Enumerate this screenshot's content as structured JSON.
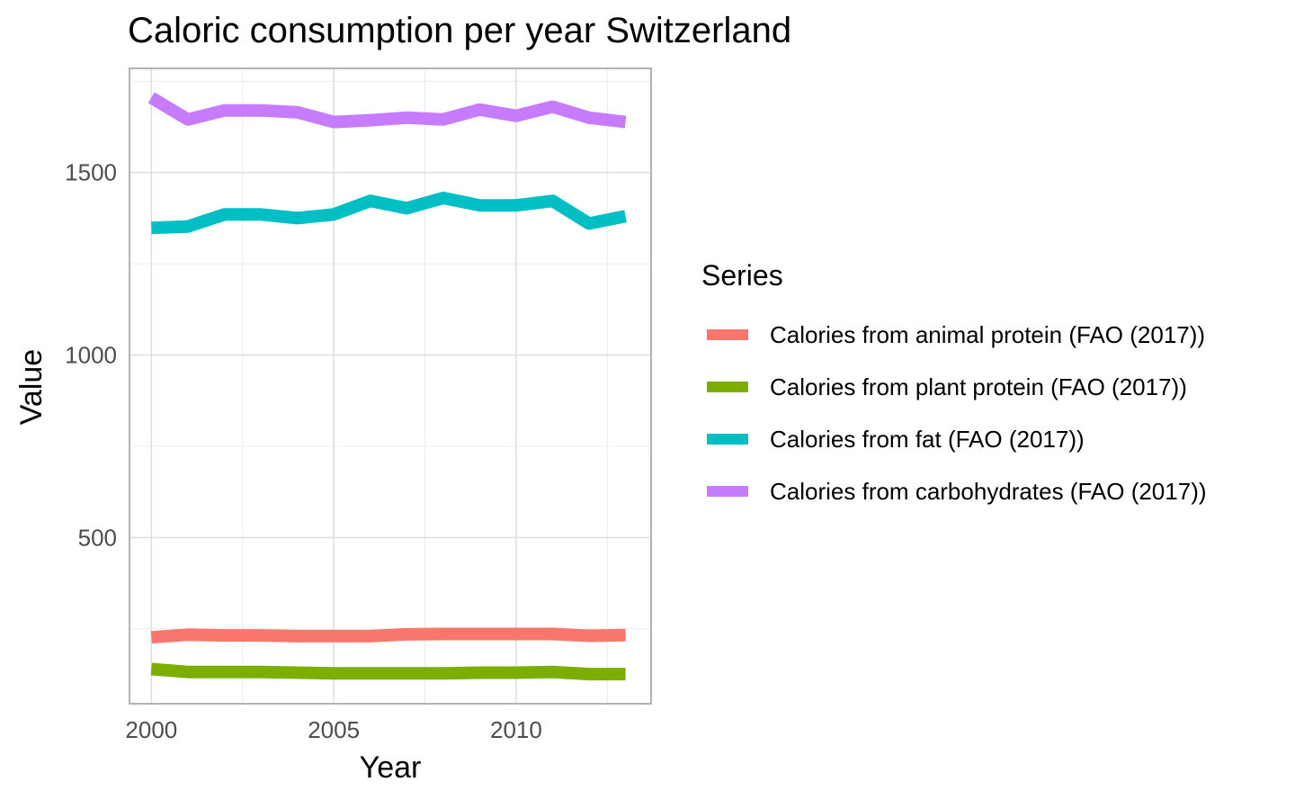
{
  "chart_data": {
    "type": "line",
    "title": "Caloric consumption per year Switzerland",
    "xlabel": "Year",
    "ylabel": "Value",
    "xlim": [
      1999.4,
      2013.7
    ],
    "ylim": [
      45,
      1785
    ],
    "x_ticks": [
      2000,
      2005,
      2010
    ],
    "y_ticks": [
      500,
      1000,
      1500
    ],
    "x_tick_labels": [
      "2000",
      "2005",
      "2010"
    ],
    "y_tick_labels": [
      "500",
      "1000",
      "1500"
    ],
    "grid": true,
    "legend_title": "Series",
    "legend_position": "right",
    "x": [
      2000,
      2001,
      2002,
      2003,
      2004,
      2005,
      2006,
      2007,
      2008,
      2009,
      2010,
      2011,
      2012,
      2013
    ],
    "series": [
      {
        "name": "Calories from animal protein (FAO (2017))",
        "color": "#F8766D",
        "values": [
          227,
          234,
          232,
          232,
          230,
          230,
          230,
          235,
          236,
          236,
          236,
          236,
          231,
          233
        ]
      },
      {
        "name": "Calories from plant protein (FAO (2017))",
        "color": "#7CAE00",
        "values": [
          140,
          132,
          132,
          132,
          130,
          128,
          128,
          128,
          128,
          130,
          130,
          132,
          126,
          126
        ]
      },
      {
        "name": "Calories from fat (FAO (2017))",
        "color": "#00BFC4",
        "values": [
          1348,
          1352,
          1385,
          1385,
          1375,
          1385,
          1422,
          1402,
          1430,
          1410,
          1410,
          1422,
          1360,
          1380
        ]
      },
      {
        "name": "Calories from carbohydrates (FAO (2017))",
        "color": "#C77CFF",
        "values": [
          1705,
          1645,
          1670,
          1670,
          1665,
          1638,
          1643,
          1650,
          1645,
          1672,
          1655,
          1680,
          1650,
          1638
        ]
      }
    ]
  }
}
